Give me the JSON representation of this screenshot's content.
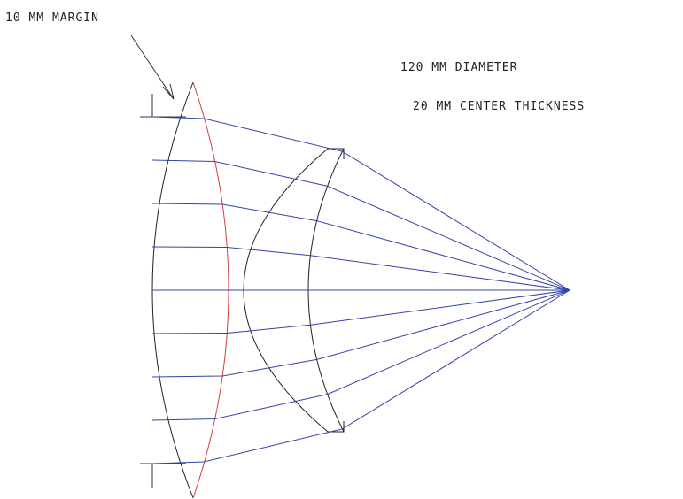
{
  "annotations": {
    "margin": "10 MM MARGIN",
    "diameter": "120 MM DIAMETER",
    "thickness": "20 MM CENTER THICKNESS"
  }
}
